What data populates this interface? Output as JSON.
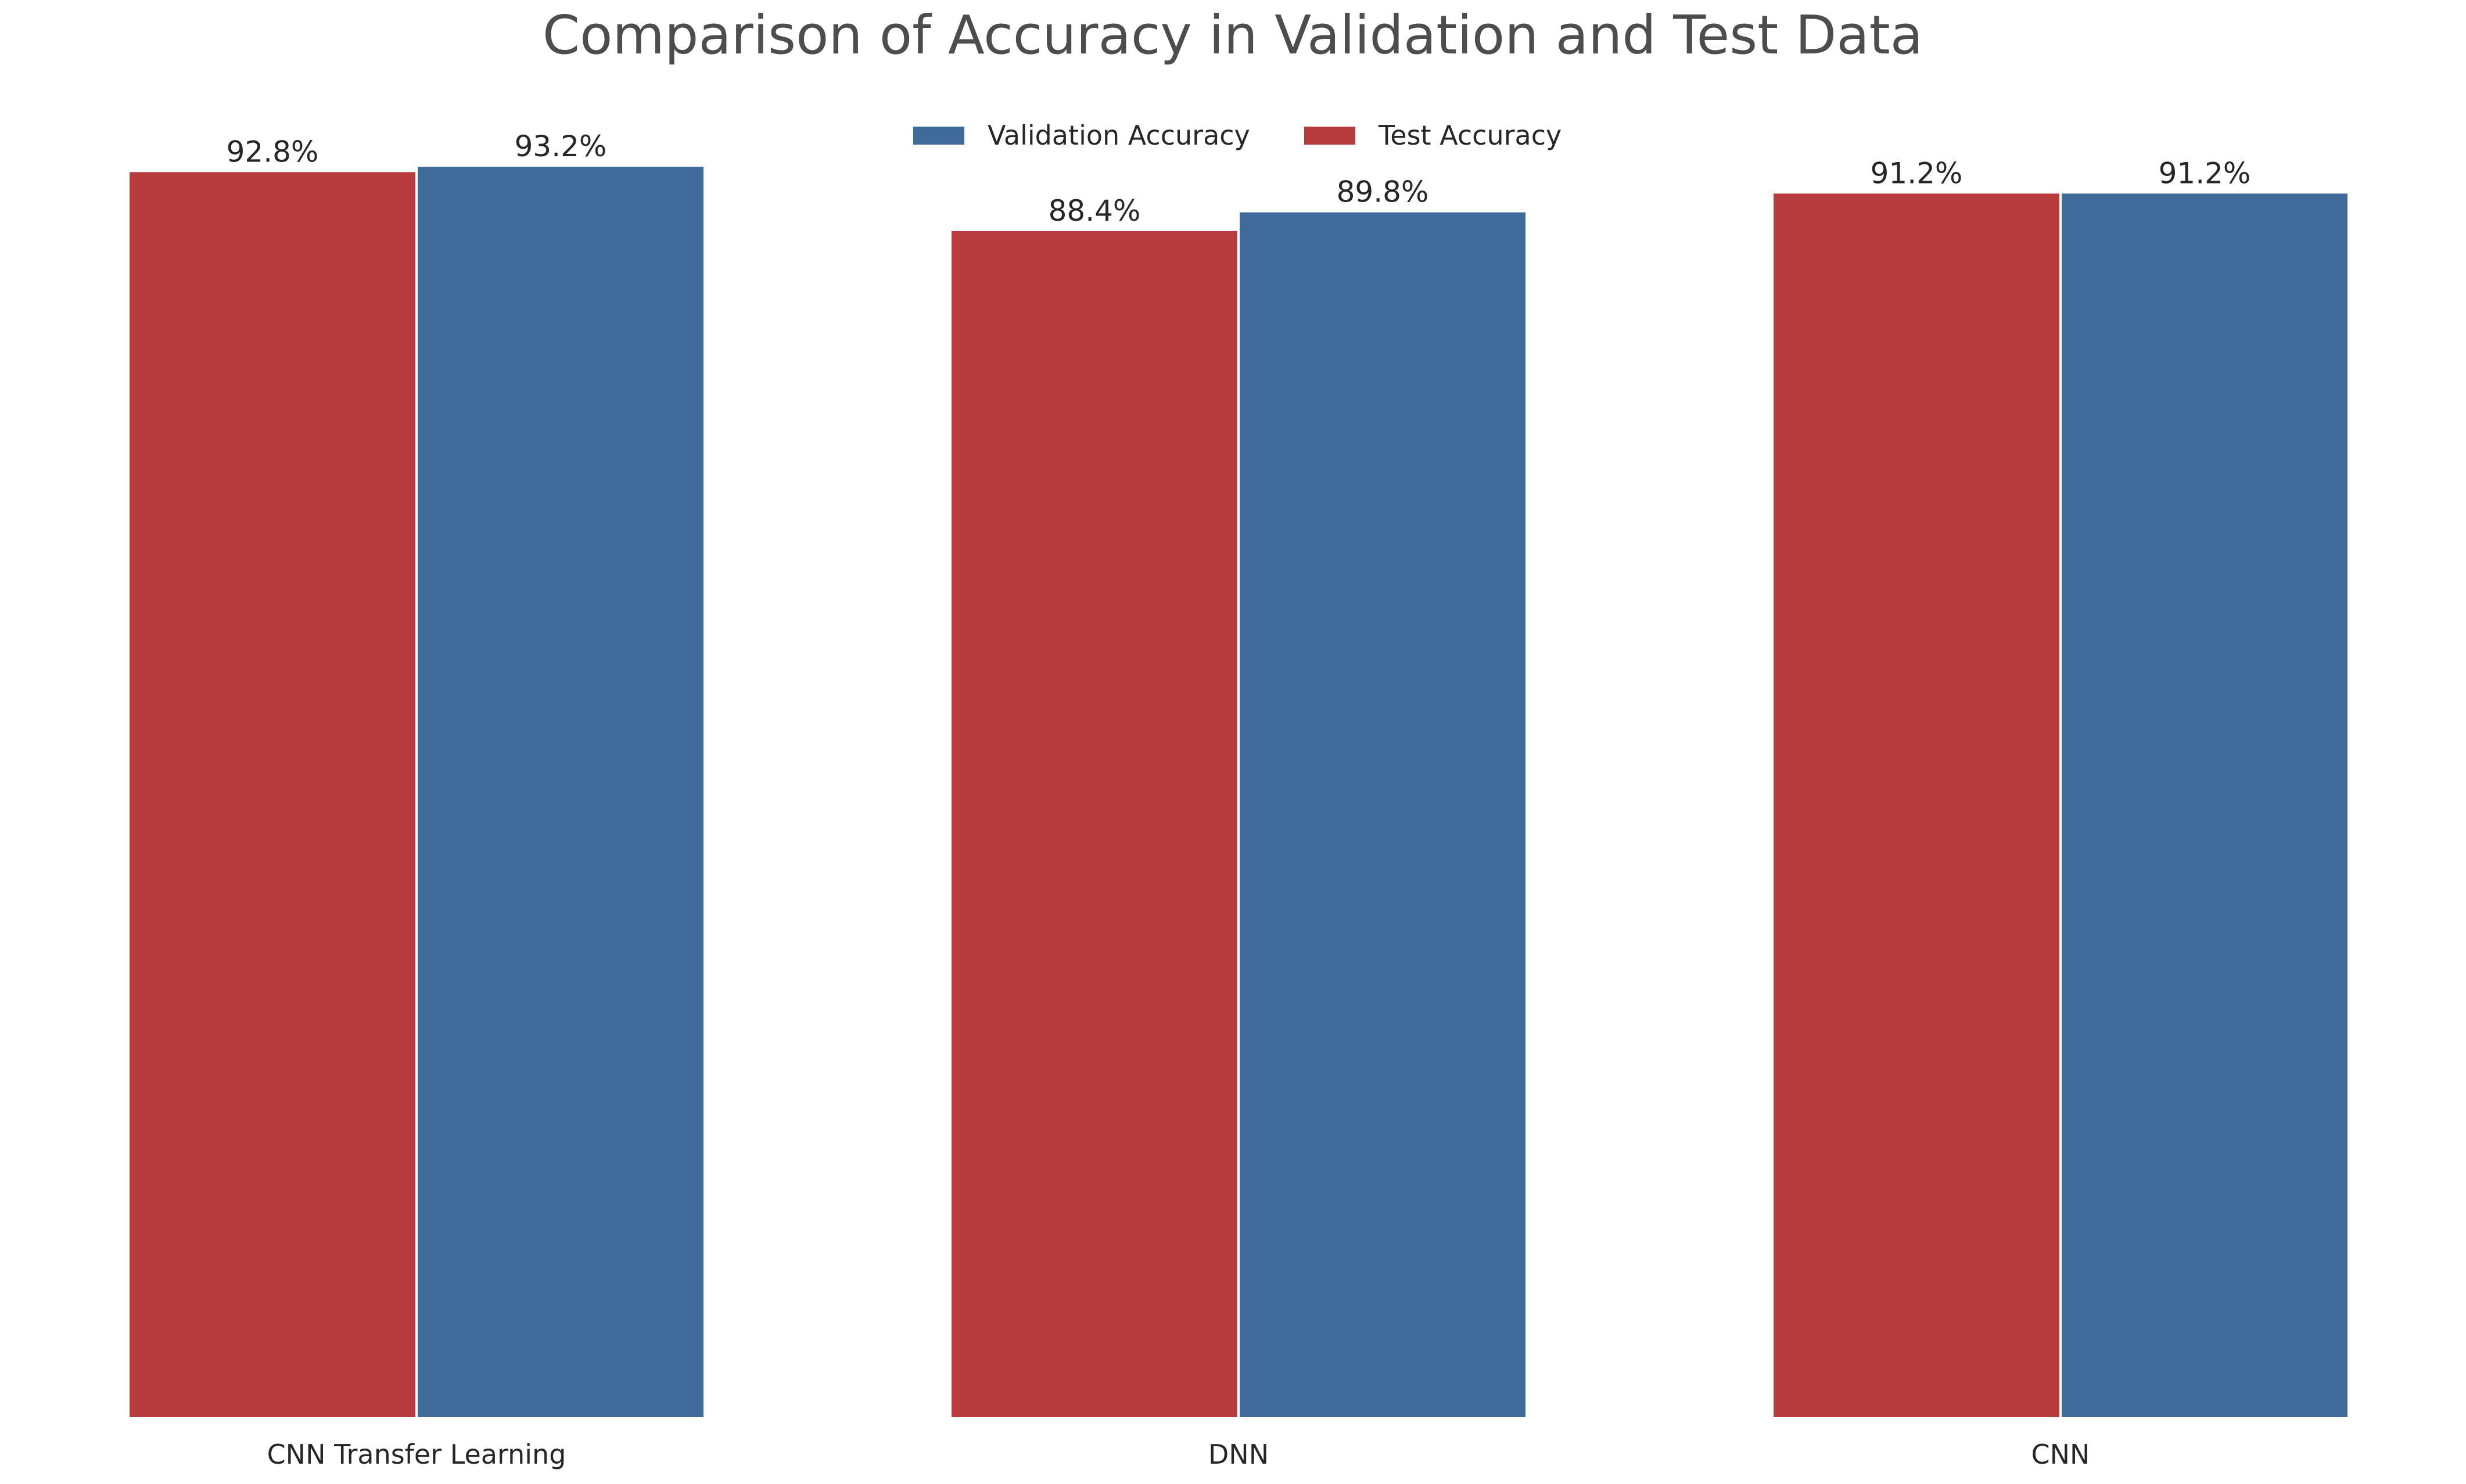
{
  "chart_data": {
    "type": "bar",
    "title": "Comparison of Accuracy in Validation and Test Data",
    "xlabel": "",
    "ylabel": "",
    "categories": [
      "CNN Transfer Learning",
      "DNN",
      "CNN"
    ],
    "series": [
      {
        "name": "Test Accuracy",
        "color": "#b83c3e",
        "values": [
          92.8,
          88.4,
          91.2
        ],
        "labels": [
          "92.8%",
          "88.4%",
          "91.2%"
        ]
      },
      {
        "name": "Validation Accuracy",
        "color": "#3f6a9a",
        "values": [
          93.2,
          89.8,
          91.2
        ],
        "labels": [
          "93.2%",
          "89.8%",
          "91.2%"
        ]
      }
    ],
    "legend_order": [
      "Validation Accuracy",
      "Test Accuracy"
    ],
    "legend_placement": "top-center",
    "ylim": [
      0,
      100
    ],
    "grid": false,
    "y_axis_visible": false
  }
}
